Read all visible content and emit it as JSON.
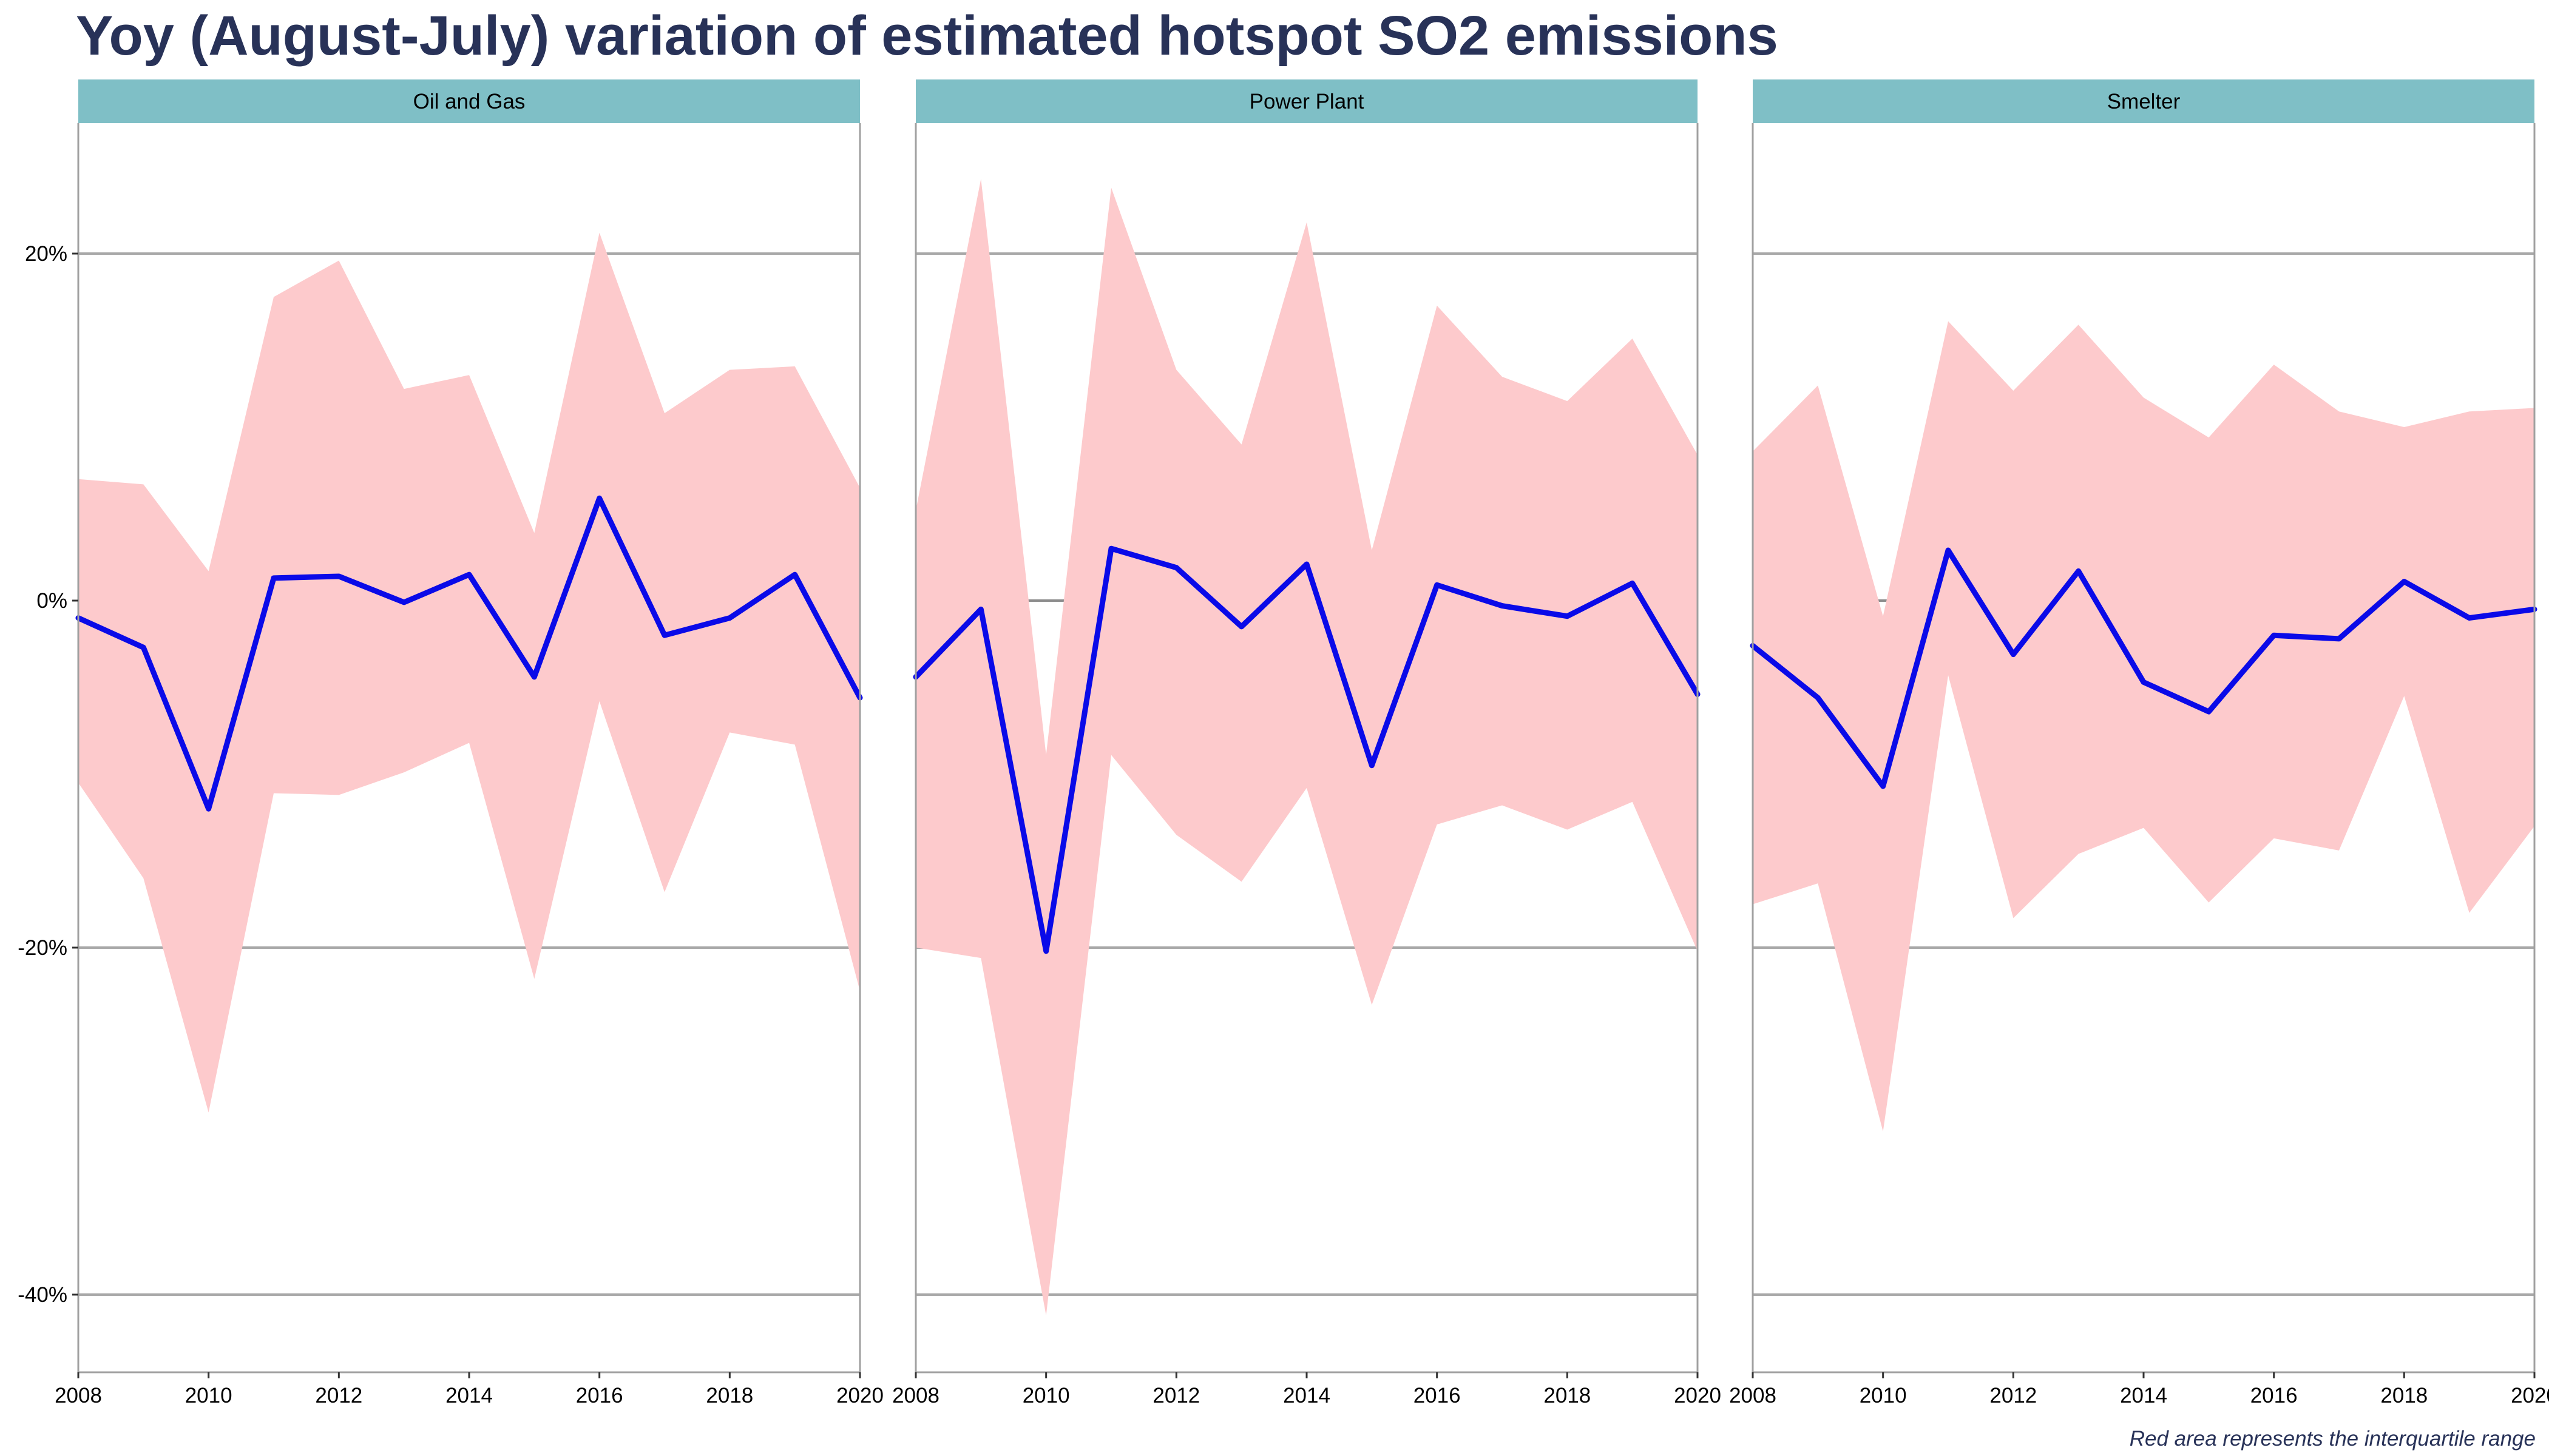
{
  "title": "Yoy (August-July) variation of estimated hotspot SO2 emissions",
  "caption": "Red area represents the interquartile range",
  "colors": {
    "title": "#283258",
    "strip_fill": "#7fbfc6",
    "band_fill": "#fdcacc",
    "line": "#0a0ae8",
    "grid": "#a8a8a8",
    "zero_line": "#8c8c8c",
    "panel_border": "#a0a0a0"
  },
  "chart_data": {
    "type": "line",
    "x_ticks": [
      "2008",
      "2010",
      "2012",
      "2014",
      "2016",
      "2018",
      "2020"
    ],
    "y_ticks": [
      "20%",
      "0%",
      "-20%",
      "-40%"
    ],
    "y_tick_values": [
      20,
      0,
      -20,
      -40
    ],
    "xlim": [
      2008,
      2020
    ],
    "ylim": [
      -44.5,
      27.5
    ],
    "x": [
      2008,
      2009,
      2010,
      2011,
      2012,
      2013,
      2014,
      2015,
      2016,
      2017,
      2018,
      2019,
      2020
    ],
    "panels": [
      {
        "label": "Oil and Gas",
        "median": [
          -1.0,
          -2.7,
          -12.0,
          1.3,
          1.4,
          -0.1,
          1.5,
          -4.4,
          5.9,
          -2.0,
          -1.0,
          1.5,
          -5.6
        ],
        "q1": [
          -10.5,
          -16.0,
          -29.5,
          -11.1,
          -11.2,
          -9.9,
          -8.2,
          -21.8,
          -5.8,
          -16.8,
          -7.6,
          -8.3,
          -22.5
        ],
        "q3": [
          7.0,
          6.7,
          1.7,
          17.5,
          19.6,
          12.2,
          13.0,
          3.9,
          21.2,
          10.8,
          13.3,
          13.5,
          6.5
        ]
      },
      {
        "label": "Power Plant",
        "median": [
          -4.4,
          -0.5,
          -20.2,
          3.0,
          1.9,
          -1.5,
          2.1,
          -9.5,
          0.9,
          -0.3,
          -0.9,
          1.0,
          -5.4
        ],
        "q1": [
          -20.0,
          -20.6,
          -41.2,
          -8.9,
          -13.5,
          -16.2,
          -10.8,
          -23.3,
          -12.9,
          -11.8,
          -13.2,
          -11.6,
          -20.2
        ],
        "q3": [
          5.2,
          24.3,
          -8.9,
          23.8,
          13.3,
          9.0,
          21.8,
          2.9,
          17.0,
          12.9,
          11.5,
          15.1,
          8.4
        ]
      },
      {
        "label": "Smelter",
        "median": [
          -2.6,
          -5.6,
          -10.7,
          2.9,
          -3.1,
          1.7,
          -4.7,
          -6.4,
          -2.0,
          -2.2,
          1.1,
          -1.0,
          -0.5
        ],
        "q1": [
          -17.5,
          -16.3,
          -30.6,
          -4.3,
          -18.3,
          -14.6,
          -13.1,
          -17.4,
          -13.7,
          -14.4,
          -5.5,
          -18.0,
          -13.0
        ],
        "q3": [
          8.6,
          12.4,
          -0.9,
          16.1,
          12.1,
          15.9,
          11.7,
          9.4,
          13.6,
          10.9,
          10.0,
          10.9,
          11.1
        ]
      }
    ]
  }
}
